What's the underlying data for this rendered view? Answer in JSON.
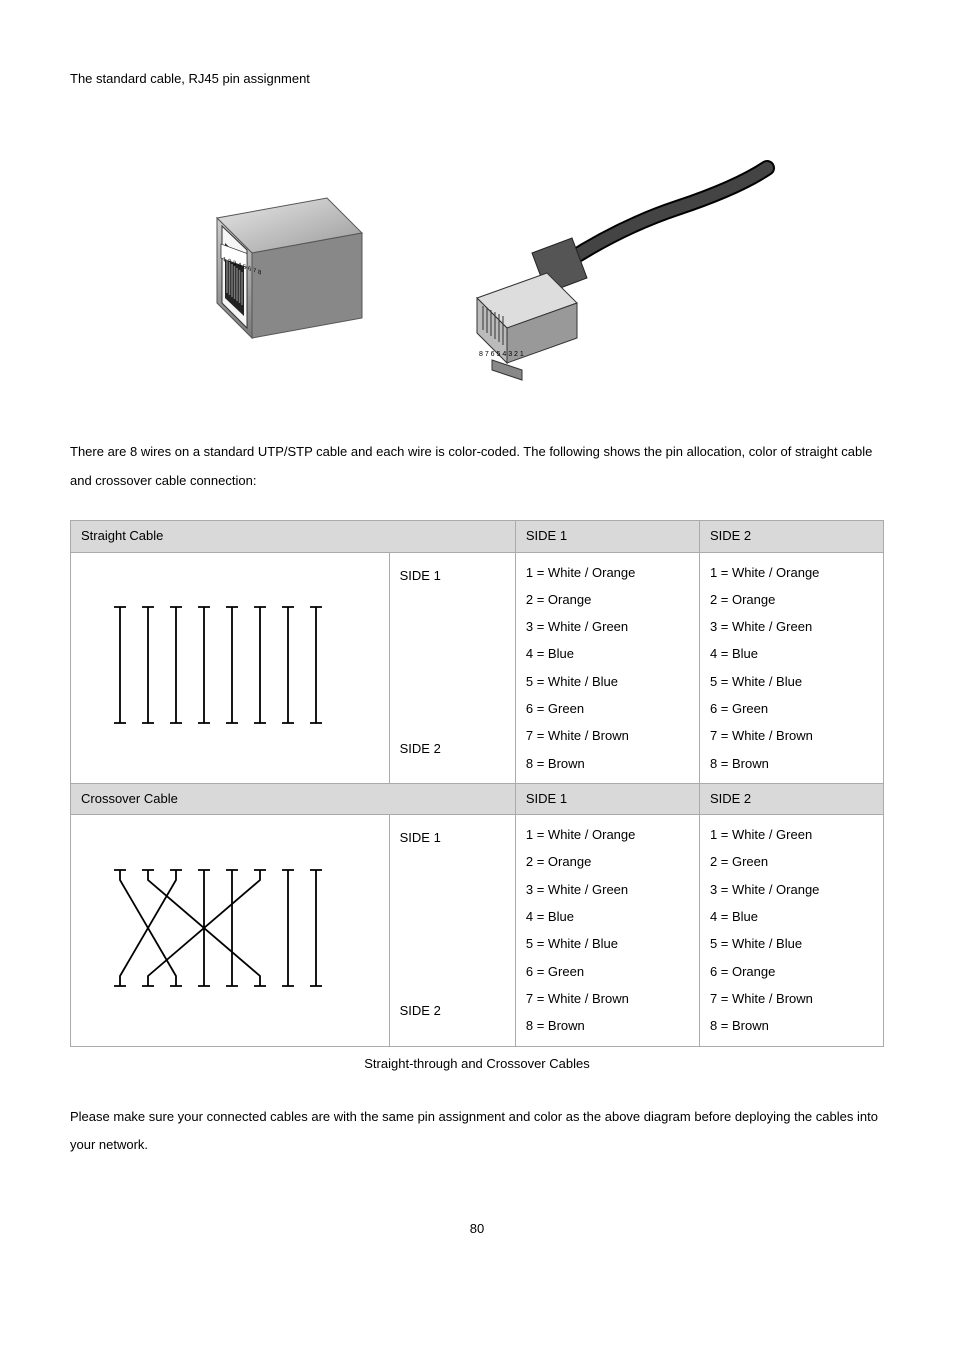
{
  "intro": "The standard cable, RJ45 pin assignment",
  "jack_pins": "1 2 3 4 5 6 7 8",
  "plug_pins": "8 7 6 5 4 3 2 1",
  "paragraph": "There are 8 wires on a standard UTP/STP cable and each wire is color-coded. The following shows the pin allocation, color of straight cable and crossover cable connection:",
  "straight": {
    "title": "Straight Cable",
    "side1_hdr": "SIDE 1",
    "side2_hdr": "SIDE 2",
    "left_top": "SIDE 1",
    "left_bottom": "SIDE 2",
    "side1": {
      "p1": "1 = White / Orange",
      "p2": "2 = Orange",
      "p3": "3 = White / Green",
      "p4": "4 = Blue",
      "p5": "5 = White / Blue",
      "p6": "6 = Green",
      "p7": "7 = White / Brown",
      "p8": "8 = Brown"
    },
    "side2": {
      "p1": "1 = White / Orange",
      "p2": "2 = Orange",
      "p3": "3 = White / Green",
      "p4": "4 = Blue",
      "p5": "5 = White / Blue",
      "p6": "6 = Green",
      "p7": "7 = White / Brown",
      "p8": "8 = Brown"
    }
  },
  "crossover": {
    "title": "Crossover Cable",
    "side1_hdr": "SIDE 1",
    "side2_hdr": "SIDE 2",
    "left_top": "SIDE 1",
    "left_bottom": "SIDE 2",
    "side1": {
      "p1": "1 = White / Orange",
      "p2": "2 = Orange",
      "p3": "3 = White / Green",
      "p4": "4 = Blue",
      "p5": "5 = White / Blue",
      "p6": "6 = Green",
      "p7": "7 = White / Brown",
      "p8": "8 = Brown"
    },
    "side2": {
      "p1": "1 = White / Green",
      "p2": "2 = Green",
      "p3": "3 = White / Orange",
      "p4": "4 = Blue",
      "p5": "5 = White / Blue",
      "p6": "6 = Orange",
      "p7": "7 = White / Brown",
      "p8": "8 = Brown"
    }
  },
  "caption": "Straight-through and Crossover Cables",
  "closing": "Please make sure your connected cables are with the same pin assignment and color as the above diagram before deploying the cables into your network.",
  "page_number": "80",
  "colors": {
    "header_bg": "#d9d9d9",
    "border": "#aaaaaa",
    "text": "#000000",
    "bg": "#ffffff"
  },
  "wire_diagram": {
    "straight_pairs": [
      [
        1,
        1
      ],
      [
        2,
        2
      ],
      [
        3,
        3
      ],
      [
        4,
        4
      ],
      [
        5,
        5
      ],
      [
        6,
        6
      ],
      [
        7,
        7
      ],
      [
        8,
        8
      ]
    ],
    "crossover_pairs": [
      [
        1,
        3
      ],
      [
        2,
        6
      ],
      [
        3,
        1
      ],
      [
        4,
        4
      ],
      [
        5,
        5
      ],
      [
        6,
        2
      ],
      [
        7,
        7
      ],
      [
        8,
        8
      ]
    ],
    "line_color": "#000000",
    "line_width": 1.5,
    "spacing": 28,
    "height": 120
  }
}
